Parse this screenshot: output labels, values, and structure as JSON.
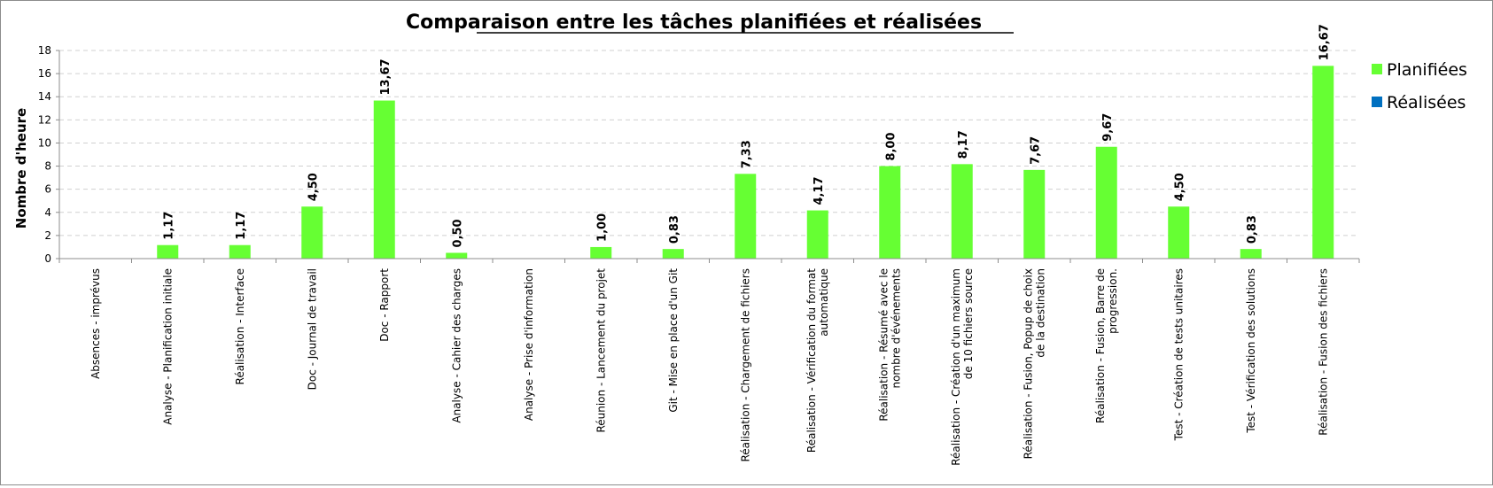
{
  "chart_data": {
    "type": "bar",
    "title": "Comparaison entre les tâches planifiées et réalisées",
    "ylabel": "Nombre d'heure",
    "xlabel": "",
    "ylim": [
      0,
      18
    ],
    "yticks": [
      "0",
      "2",
      "4",
      "6",
      "8",
      "10",
      "12",
      "14",
      "16",
      "18"
    ],
    "grid": true,
    "legend_position": "right",
    "categories": [
      [
        "Absences - imprévus"
      ],
      [
        "Analyse - Planification initiale"
      ],
      [
        "Réalisation - Interface"
      ],
      [
        "Doc - Journal de travail"
      ],
      [
        "Doc - Rapport"
      ],
      [
        "Analyse - Cahier des charges"
      ],
      [
        "Analyse - Prise d'information"
      ],
      [
        "Réunion - Lancement du projet"
      ],
      [
        "Git - Mise en place d'un Git"
      ],
      [
        "Réalisation - Chargement de fichiers"
      ],
      [
        "Réalisation - Vérification du format",
        "automatique"
      ],
      [
        "Réalisation - Résumé avec le",
        "nombre d'événements"
      ],
      [
        "Réalisation - Création d'un maximum",
        "de 10 fichiers source"
      ],
      [
        "Réalisation - Fusion, Popup de choix",
        "de la destination"
      ],
      [
        "Réalisation - Fusion, Barre de",
        "progression."
      ],
      [
        "Test - Création de tests unitaires"
      ],
      [
        "Test - Vérification des solutions"
      ],
      [
        "Réalisation - Fusion des fichiers"
      ]
    ],
    "series": [
      {
        "name": "Planifiées",
        "color": "#66ff33",
        "values": [
          null,
          1.17,
          1.17,
          4.5,
          13.67,
          0.5,
          null,
          1.0,
          0.83,
          7.33,
          4.17,
          8.0,
          8.17,
          7.67,
          9.67,
          4.5,
          0.83,
          16.67
        ],
        "labels": [
          "",
          "1,17",
          "1,17",
          "4,50",
          "13,67",
          "0,50",
          "",
          "1,00",
          "0,83",
          "7,33",
          "4,17",
          "8,00",
          "8,17",
          "7,67",
          "9,67",
          "4,50",
          "0,83",
          "16,67"
        ]
      },
      {
        "name": "Réalisées",
        "color": "#0070c0",
        "values": [
          null,
          null,
          null,
          null,
          null,
          null,
          null,
          null,
          null,
          null,
          null,
          null,
          null,
          null,
          null,
          null,
          null,
          null
        ],
        "labels": []
      }
    ]
  }
}
